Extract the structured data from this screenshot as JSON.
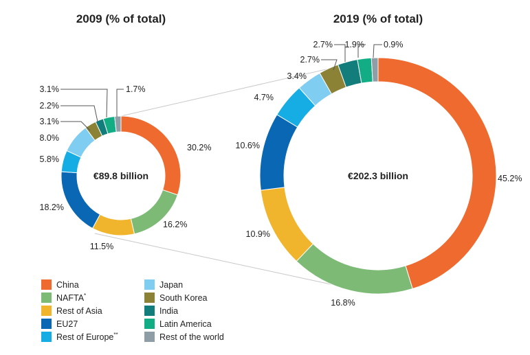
{
  "chart_data": [
    {
      "type": "pie",
      "title": "2009 (% of total)",
      "center_label": "€89.8 billion",
      "categories": [
        "China",
        "NAFTA*",
        "Rest of Asia",
        "EU27",
        "Rest of Europe**",
        "Japan",
        "South Korea",
        "India",
        "Latin America",
        "Rest of the world"
      ],
      "values": [
        30.2,
        16.2,
        11.5,
        18.2,
        5.8,
        8.0,
        3.1,
        2.2,
        3.1,
        1.7
      ],
      "labels": [
        "30.2%",
        "16.2%",
        "11.5%",
        "18.2%",
        "5.8%",
        "8.0%",
        "3.1%",
        "2.2%",
        "3.1%",
        "1.7%"
      ]
    },
    {
      "type": "pie",
      "title": "2019 (% of total)",
      "center_label": "€202.3 billion",
      "categories": [
        "China",
        "NAFTA*",
        "Rest of Asia",
        "EU27",
        "Rest of Europe**",
        "Japan",
        "South Korea",
        "India",
        "Latin America",
        "Rest of the world"
      ],
      "values": [
        45.2,
        16.8,
        10.9,
        10.6,
        4.7,
        3.4,
        2.7,
        2.7,
        1.9,
        0.9
      ],
      "labels": [
        "45.2%",
        "16.8%",
        "10.9%",
        "10.6%",
        "4.7%",
        "3.4%",
        "2.7%",
        "2.7%",
        "1.9%",
        "0.9%"
      ]
    }
  ],
  "legend": [
    {
      "label": "China",
      "color": "#ee6a2f"
    },
    {
      "label": "NAFTA",
      "sup": "*",
      "color": "#7dba76"
    },
    {
      "label": "Rest of Asia",
      "color": "#f0b52c"
    },
    {
      "label": "EU27",
      "color": "#0a67b3"
    },
    {
      "label": "Rest of Europe",
      "sup": "**",
      "color": "#16ade4"
    },
    {
      "label": "Japan",
      "color": "#7fcdf1"
    },
    {
      "label": "South Korea",
      "color": "#8c8236"
    },
    {
      "label": "India",
      "color": "#127d7b"
    },
    {
      "label": "Latin America",
      "color": "#13ad85"
    },
    {
      "label": "Rest of the world",
      "color": "#8f9ea6"
    }
  ]
}
